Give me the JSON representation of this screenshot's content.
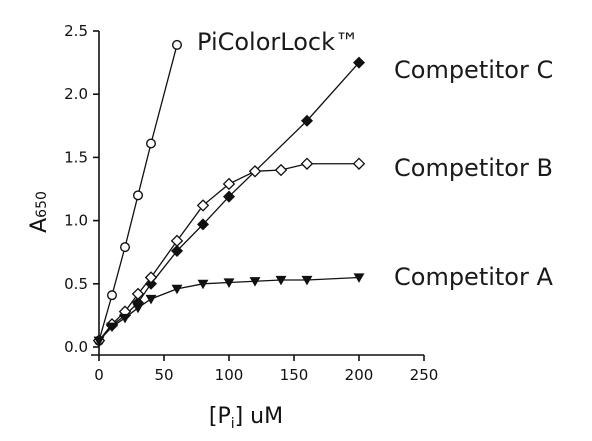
{
  "chart_data": {
    "type": "line",
    "xlabel": "[Pi] uM",
    "xlabel_main": "[P",
    "xlabel_sub": "i",
    "xlabel_tail": "] uM",
    "ylabel": "A650",
    "ylabel_main": "A",
    "ylabel_sub": "650",
    "xlim": [
      0,
      250
    ],
    "ylim": [
      0,
      2.5
    ],
    "xticks": [
      0,
      50,
      100,
      150,
      200,
      250
    ],
    "yticks": [
      0.0,
      0.5,
      1.0,
      1.5,
      2.0,
      2.5
    ],
    "xtick_labels": [
      "0",
      "50",
      "100",
      "150",
      "200",
      "250"
    ],
    "ytick_labels": [
      "0.0",
      "0.5",
      "1.0",
      "1.5",
      "2.0",
      "2.5"
    ],
    "grid": false,
    "legend": "inline labels at series ends",
    "series": [
      {
        "name": "PiColorLock™",
        "marker": "open-circle",
        "x": [
          0,
          10,
          20,
          30,
          40,
          60
        ],
        "y": [
          0.05,
          0.41,
          0.79,
          1.2,
          1.61,
          2.39
        ]
      },
      {
        "name": "Competitor C",
        "marker": "filled-diamond",
        "x": [
          0,
          10,
          20,
          30,
          40,
          60,
          80,
          100,
          120,
          160,
          200
        ],
        "y": [
          0.05,
          0.17,
          0.25,
          0.35,
          0.5,
          0.76,
          0.97,
          1.19,
          1.39,
          1.79,
          2.25
        ]
      },
      {
        "name": "Competitor B",
        "marker": "open-diamond",
        "x": [
          0,
          10,
          20,
          30,
          40,
          60,
          80,
          100,
          120,
          140,
          160,
          200
        ],
        "y": [
          0.05,
          0.18,
          0.28,
          0.42,
          0.55,
          0.84,
          1.12,
          1.29,
          1.39,
          1.4,
          1.45,
          1.45
        ]
      },
      {
        "name": "Competitor A",
        "marker": "filled-triangle-down",
        "x": [
          0,
          10,
          20,
          30,
          40,
          60,
          80,
          100,
          120,
          140,
          160,
          200
        ],
        "y": [
          0.05,
          0.16,
          0.23,
          0.31,
          0.38,
          0.46,
          0.5,
          0.51,
          0.52,
          0.53,
          0.53,
          0.55
        ]
      }
    ]
  }
}
